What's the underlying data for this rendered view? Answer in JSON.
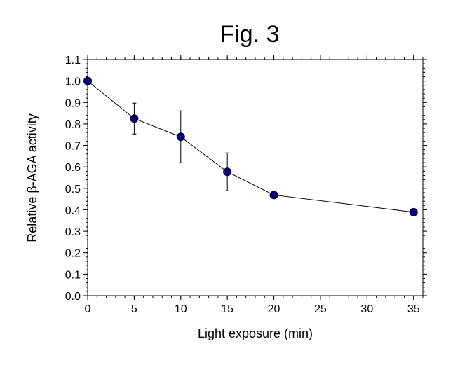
{
  "chart_data": {
    "type": "line",
    "title": "Fig. 3",
    "xlabel": "Light exposure (min)",
    "ylabel": "Relative β-AGA activity",
    "xlim": [
      0,
      36
    ],
    "ylim": [
      0,
      1.1
    ],
    "xticks": [
      0,
      5,
      10,
      15,
      20,
      25,
      30,
      35
    ],
    "xtick_labels": [
      "0",
      "5",
      "10",
      "15",
      "20",
      "25",
      "30",
      "35"
    ],
    "yticks": [
      0,
      0.1,
      0.2,
      0.3,
      0.4,
      0.5,
      0.6,
      0.7,
      0.8,
      0.9,
      1.0,
      1.1
    ],
    "ytick_labels": [
      "0.0",
      "0.1",
      "0.2",
      "0.3",
      "0.4",
      "0.5",
      "0.6",
      "0.7",
      "0.8",
      "0.9",
      "1.0",
      "1.1"
    ],
    "grid": false,
    "series": [
      {
        "x": [
          0,
          5,
          10,
          15,
          20,
          35
        ],
        "y": [
          1.0,
          0.825,
          0.74,
          0.577,
          0.469,
          0.389
        ],
        "error": [
          0,
          0.072,
          0.121,
          0.088,
          0.008,
          0.016
        ],
        "marker_color": "#000080",
        "line_color": "#000000"
      }
    ]
  }
}
